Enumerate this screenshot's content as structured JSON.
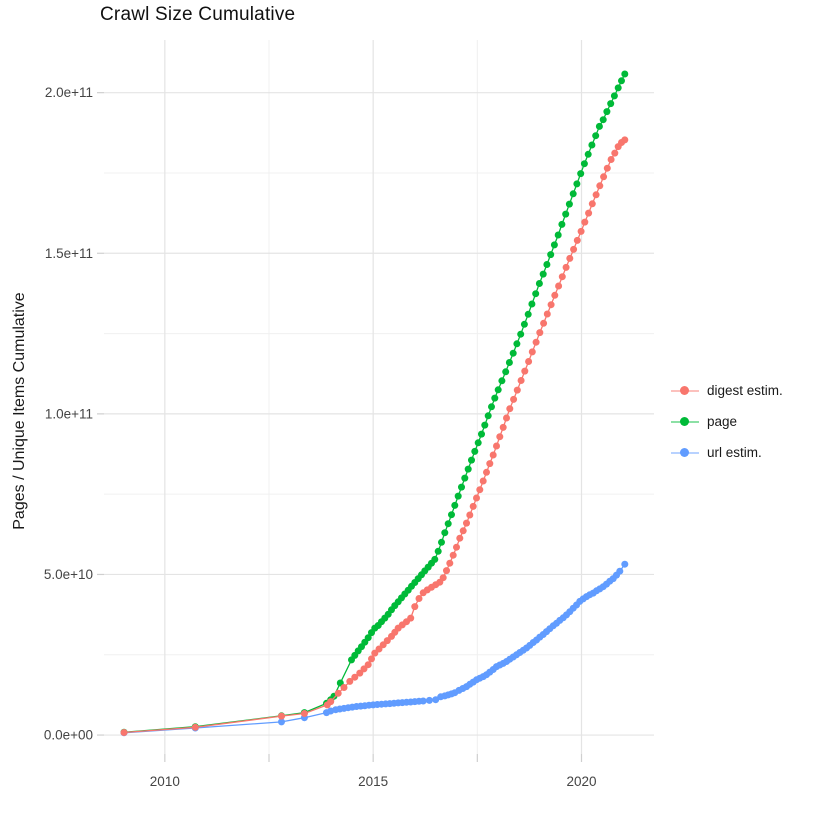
{
  "title": "Crawl Size Cumulative",
  "y_axis_title": "Pages / Unique Items Cumulative",
  "legend": {
    "position": "right",
    "items": [
      {
        "label": "digest estim.",
        "series": "digest estim.",
        "color": "#F8766D"
      },
      {
        "label": "page",
        "series": "page",
        "color": "#00BA38"
      },
      {
        "label": "url estim.",
        "series": "url estim.",
        "color": "#619CFF"
      }
    ]
  },
  "chart_data": {
    "type": "scatter",
    "title": "Crawl Size Cumulative",
    "xlabel": "",
    "ylabel": "Pages / Unique Items Cumulative",
    "values_unit": "billions (1e9); e.g. 205.8 means 2.058e+11",
    "grid": true,
    "legend_position": "right",
    "axes": {
      "x": {
        "domain": [
          2008.54,
          2021.74
        ],
        "major_ticks": [
          2010,
          2015,
          2020
        ],
        "major_tick_labels": [
          "2010",
          "2015",
          "2020"
        ],
        "minor_ticks": [
          2012.5,
          2017.5
        ]
      },
      "y": {
        "domain_billions": [
          -5.9,
          216.4
        ],
        "major_ticks_billions": [
          0,
          50,
          100,
          150,
          200
        ],
        "major_tick_labels": [
          "0.0e+00",
          "5.0e+10",
          "1.0e+11",
          "1.5e+11",
          "2.0e+11"
        ],
        "minor_ticks_billions": [
          25,
          75,
          125,
          175
        ]
      }
    },
    "draw_order": [
      "page",
      "url estim.",
      "digest estim."
    ],
    "series": [
      {
        "name": "page",
        "color": "#00BA38",
        "points": [
          [
            2009.02,
            0.9
          ],
          [
            2010.73,
            2.6
          ],
          [
            2012.8,
            6.0
          ],
          [
            2013.35,
            7.0
          ],
          [
            2013.88,
            9.9
          ],
          [
            2013.98,
            11.0
          ],
          [
            2014.06,
            12.1
          ],
          [
            2014.21,
            16.2
          ],
          [
            2014.48,
            23.4
          ],
          [
            2014.56,
            24.8
          ],
          [
            2014.64,
            26.2
          ],
          [
            2014.72,
            27.5
          ],
          [
            2014.8,
            28.9
          ],
          [
            2014.88,
            30.3
          ],
          [
            2014.96,
            31.9
          ],
          [
            2015.04,
            33.3
          ],
          [
            2015.12,
            34.1
          ],
          [
            2015.2,
            35.3
          ],
          [
            2015.28,
            36.4
          ],
          [
            2015.36,
            37.6
          ],
          [
            2015.44,
            39.0
          ],
          [
            2015.52,
            40.3
          ],
          [
            2015.6,
            41.5
          ],
          [
            2015.68,
            42.7
          ],
          [
            2015.76,
            43.9
          ],
          [
            2015.84,
            45.1
          ],
          [
            2015.92,
            46.3
          ],
          [
            2016.0,
            47.5
          ],
          [
            2016.08,
            48.7
          ],
          [
            2016.16,
            49.9
          ],
          [
            2016.24,
            51.1
          ],
          [
            2016.32,
            52.3
          ],
          [
            2016.4,
            53.5
          ],
          [
            2016.48,
            54.7
          ],
          [
            2016.56,
            57.2
          ],
          [
            2016.64,
            60.0
          ],
          [
            2016.72,
            63.0
          ],
          [
            2016.8,
            65.8
          ],
          [
            2016.88,
            68.6
          ],
          [
            2016.96,
            71.5
          ],
          [
            2017.04,
            74.4
          ],
          [
            2017.12,
            77.2
          ],
          [
            2017.2,
            80.0
          ],
          [
            2017.28,
            82.8
          ],
          [
            2017.36,
            85.6
          ],
          [
            2017.44,
            88.3
          ],
          [
            2017.52,
            91.0
          ],
          [
            2017.6,
            93.7
          ],
          [
            2017.68,
            96.5
          ],
          [
            2017.76,
            99.4
          ],
          [
            2017.84,
            102.2
          ],
          [
            2017.92,
            104.9
          ],
          [
            2018.0,
            107.5
          ],
          [
            2018.09,
            110.3
          ],
          [
            2018.18,
            113.1
          ],
          [
            2018.27,
            116.0
          ],
          [
            2018.36,
            118.9
          ],
          [
            2018.45,
            121.8
          ],
          [
            2018.54,
            124.8
          ],
          [
            2018.63,
            127.9
          ],
          [
            2018.72,
            131.0
          ],
          [
            2018.81,
            134.2
          ],
          [
            2018.9,
            137.4
          ],
          [
            2018.99,
            140.6
          ],
          [
            2019.08,
            143.5
          ],
          [
            2019.17,
            146.5
          ],
          [
            2019.26,
            149.6
          ],
          [
            2019.35,
            152.6
          ],
          [
            2019.44,
            155.7
          ],
          [
            2019.53,
            159.0
          ],
          [
            2019.62,
            162.2
          ],
          [
            2019.71,
            165.3
          ],
          [
            2019.8,
            168.5
          ],
          [
            2019.89,
            171.6
          ],
          [
            2019.98,
            174.8
          ],
          [
            2020.07,
            177.9
          ],
          [
            2020.16,
            180.8
          ],
          [
            2020.25,
            183.7
          ],
          [
            2020.34,
            186.6
          ],
          [
            2020.43,
            189.5
          ],
          [
            2020.52,
            191.6
          ],
          [
            2020.61,
            194.1
          ],
          [
            2020.7,
            196.6
          ],
          [
            2020.79,
            199.0
          ],
          [
            2020.88,
            201.5
          ],
          [
            2020.96,
            203.7
          ],
          [
            2021.04,
            205.8
          ]
        ]
      },
      {
        "name": "digest estim.",
        "color": "#F8766D",
        "points": [
          [
            2009.02,
            0.8
          ],
          [
            2010.73,
            2.4
          ],
          [
            2012.8,
            5.9
          ],
          [
            2013.35,
            6.7
          ],
          [
            2013.9,
            9.4
          ],
          [
            2013.98,
            10.4
          ],
          [
            2014.16,
            13.0
          ],
          [
            2014.3,
            14.8
          ],
          [
            2014.44,
            16.7
          ],
          [
            2014.56,
            18.0
          ],
          [
            2014.68,
            19.3
          ],
          [
            2014.78,
            20.6
          ],
          [
            2014.88,
            21.9
          ],
          [
            2014.96,
            23.7
          ],
          [
            2015.04,
            25.5
          ],
          [
            2015.14,
            26.8
          ],
          [
            2015.24,
            28.1
          ],
          [
            2015.34,
            29.4
          ],
          [
            2015.44,
            30.7
          ],
          [
            2015.52,
            32.0
          ],
          [
            2015.6,
            33.3
          ],
          [
            2015.7,
            34.3
          ],
          [
            2015.8,
            35.3
          ],
          [
            2015.9,
            36.4
          ],
          [
            2016.0,
            40.0
          ],
          [
            2016.1,
            42.5
          ],
          [
            2016.2,
            44.3
          ],
          [
            2016.3,
            45.2
          ],
          [
            2016.4,
            46.0
          ],
          [
            2016.5,
            46.8
          ],
          [
            2016.6,
            47.6
          ],
          [
            2016.68,
            49.0
          ],
          [
            2016.76,
            51.2
          ],
          [
            2016.84,
            53.5
          ],
          [
            2016.92,
            56.0
          ],
          [
            2017.0,
            58.5
          ],
          [
            2017.08,
            61.3
          ],
          [
            2017.16,
            63.6
          ],
          [
            2017.24,
            66.0
          ],
          [
            2017.32,
            68.5
          ],
          [
            2017.4,
            71.2
          ],
          [
            2017.48,
            73.8
          ],
          [
            2017.56,
            76.4
          ],
          [
            2017.64,
            79.1
          ],
          [
            2017.72,
            81.8
          ],
          [
            2017.8,
            84.5
          ],
          [
            2017.88,
            87.2
          ],
          [
            2017.96,
            90.0
          ],
          [
            2018.04,
            92.9
          ],
          [
            2018.12,
            95.8
          ],
          [
            2018.2,
            98.7
          ],
          [
            2018.28,
            101.6
          ],
          [
            2018.37,
            104.5
          ],
          [
            2018.46,
            107.4
          ],
          [
            2018.55,
            110.4
          ],
          [
            2018.64,
            113.3
          ],
          [
            2018.73,
            116.3
          ],
          [
            2018.82,
            119.3
          ],
          [
            2018.91,
            122.3
          ],
          [
            2019.0,
            125.3
          ],
          [
            2019.09,
            128.2
          ],
          [
            2019.18,
            131.1
          ],
          [
            2019.27,
            134.0
          ],
          [
            2019.36,
            136.9
          ],
          [
            2019.45,
            139.8
          ],
          [
            2019.54,
            142.7
          ],
          [
            2019.63,
            145.6
          ],
          [
            2019.72,
            148.4
          ],
          [
            2019.81,
            151.2
          ],
          [
            2019.9,
            154.0
          ],
          [
            2019.99,
            156.8
          ],
          [
            2020.08,
            159.7
          ],
          [
            2020.17,
            162.5
          ],
          [
            2020.26,
            165.4
          ],
          [
            2020.35,
            168.2
          ],
          [
            2020.44,
            171.0
          ],
          [
            2020.53,
            173.8
          ],
          [
            2020.62,
            176.5
          ],
          [
            2020.71,
            179.2
          ],
          [
            2020.8,
            181.2
          ],
          [
            2020.88,
            183.2
          ],
          [
            2020.96,
            184.5
          ],
          [
            2021.04,
            185.3
          ]
        ]
      },
      {
        "name": "url estim.",
        "color": "#619CFF",
        "points": [
          [
            2009.02,
            0.7
          ],
          [
            2010.73,
            2.2
          ],
          [
            2012.8,
            4.1
          ],
          [
            2013.35,
            5.4
          ],
          [
            2013.88,
            7.0
          ],
          [
            2013.98,
            7.5
          ],
          [
            2014.1,
            7.9
          ],
          [
            2014.2,
            8.1
          ],
          [
            2014.3,
            8.3
          ],
          [
            2014.4,
            8.5
          ],
          [
            2014.5,
            8.7
          ],
          [
            2014.6,
            8.9
          ],
          [
            2014.7,
            9.0
          ],
          [
            2014.8,
            9.1
          ],
          [
            2014.9,
            9.3
          ],
          [
            2015.0,
            9.4
          ],
          [
            2015.1,
            9.5
          ],
          [
            2015.2,
            9.6
          ],
          [
            2015.3,
            9.7
          ],
          [
            2015.4,
            9.8
          ],
          [
            2015.5,
            9.9
          ],
          [
            2015.6,
            10.0
          ],
          [
            2015.7,
            10.1
          ],
          [
            2015.8,
            10.2
          ],
          [
            2015.9,
            10.3
          ],
          [
            2016.0,
            10.4
          ],
          [
            2016.1,
            10.5
          ],
          [
            2016.2,
            10.6
          ],
          [
            2016.35,
            10.8
          ],
          [
            2016.5,
            11.0
          ],
          [
            2016.62,
            11.9
          ],
          [
            2016.72,
            12.2
          ],
          [
            2016.8,
            12.5
          ],
          [
            2016.88,
            12.8
          ],
          [
            2016.96,
            13.2
          ],
          [
            2017.06,
            13.9
          ],
          [
            2017.15,
            14.5
          ],
          [
            2017.24,
            15.1
          ],
          [
            2017.32,
            15.8
          ],
          [
            2017.4,
            16.5
          ],
          [
            2017.48,
            17.2
          ],
          [
            2017.56,
            17.7
          ],
          [
            2017.64,
            18.2
          ],
          [
            2017.72,
            18.8
          ],
          [
            2017.8,
            19.6
          ],
          [
            2017.88,
            20.4
          ],
          [
            2017.96,
            21.3
          ],
          [
            2018.04,
            21.8
          ],
          [
            2018.12,
            22.3
          ],
          [
            2018.2,
            22.9
          ],
          [
            2018.28,
            23.6
          ],
          [
            2018.36,
            24.3
          ],
          [
            2018.44,
            25.0
          ],
          [
            2018.52,
            25.7
          ],
          [
            2018.6,
            26.4
          ],
          [
            2018.68,
            27.1
          ],
          [
            2018.76,
            27.9
          ],
          [
            2018.84,
            28.8
          ],
          [
            2018.92,
            29.6
          ],
          [
            2019.0,
            30.5
          ],
          [
            2019.08,
            31.3
          ],
          [
            2019.16,
            32.2
          ],
          [
            2019.24,
            33.1
          ],
          [
            2019.32,
            34.0
          ],
          [
            2019.4,
            34.8
          ],
          [
            2019.48,
            35.7
          ],
          [
            2019.56,
            36.5
          ],
          [
            2019.64,
            37.4
          ],
          [
            2019.72,
            38.4
          ],
          [
            2019.8,
            39.5
          ],
          [
            2019.88,
            40.5
          ],
          [
            2019.96,
            41.6
          ],
          [
            2020.04,
            42.4
          ],
          [
            2020.12,
            43.1
          ],
          [
            2020.2,
            43.7
          ],
          [
            2020.28,
            44.2
          ],
          [
            2020.36,
            44.9
          ],
          [
            2020.44,
            45.5
          ],
          [
            2020.52,
            46.2
          ],
          [
            2020.6,
            47.0
          ],
          [
            2020.68,
            47.9
          ],
          [
            2020.76,
            48.7
          ],
          [
            2020.84,
            49.8
          ],
          [
            2020.92,
            51.0
          ],
          [
            2021.04,
            53.2
          ]
        ]
      }
    ]
  }
}
